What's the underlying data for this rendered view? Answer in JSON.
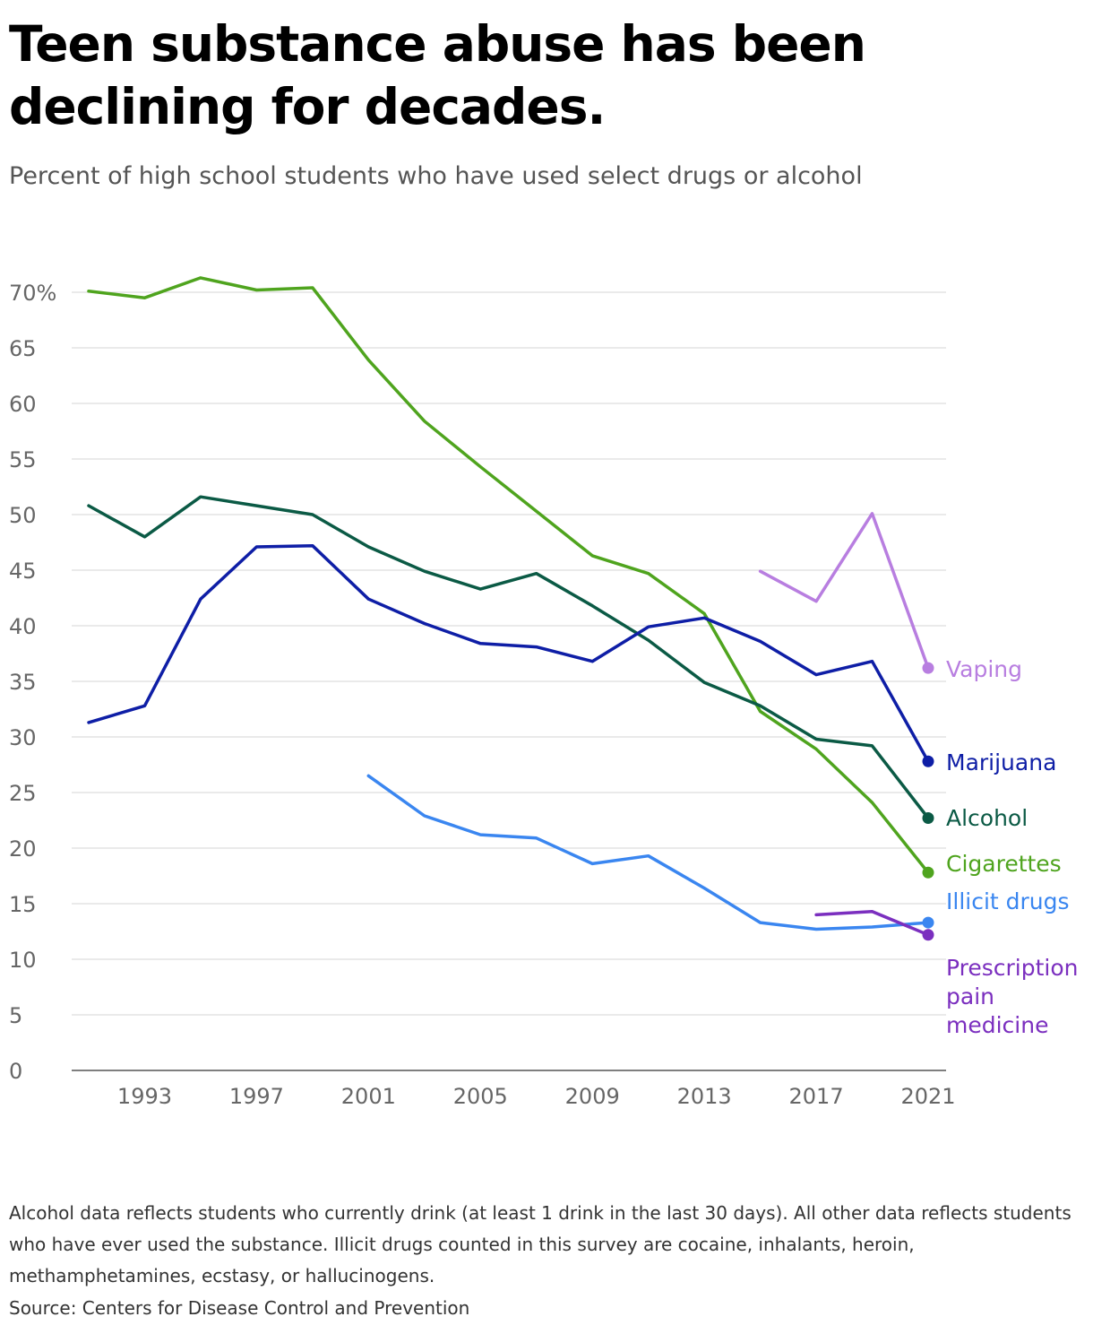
{
  "title": "Teen substance abuse has been declining for decades.",
  "subtitle": "Percent of high school students who have used select drugs or alcohol",
  "footnote": "Alcohol data reflects students who currently drink (at least 1 drink in the last 30 days). All other data reflects students who have ever used the substance. Illicit drugs counted in this survey are cocaine, inhalants, heroin, methamphetamines, ecstasy, or hallucinogens.",
  "source": "Source: Centers for Disease Control and Prevention",
  "chart_data": {
    "type": "line",
    "title": "Teen substance abuse has been declining for decades.",
    "subtitle": "Percent of high school students who have used select drugs or alcohol",
    "xlabel": "",
    "ylabel": "",
    "xlim": [
      1990.5,
      2021.7
    ],
    "ylim": [
      0,
      70
    ],
    "grid": true,
    "legend": "direct labels at right end of lines",
    "x_ticks": [
      1993,
      1997,
      2001,
      2005,
      2009,
      2013,
      2017,
      2021
    ],
    "x_tick_labels": [
      "1993",
      "1997",
      "2001",
      "2005",
      "2009",
      "2013",
      "2017",
      "2021"
    ],
    "y_ticks": [
      0,
      5,
      10,
      15,
      20,
      25,
      30,
      35,
      40,
      45,
      50,
      55,
      60,
      65,
      70
    ],
    "y_tick_labels": [
      "0",
      "5",
      "10",
      "15",
      "20",
      "25",
      "30",
      "35",
      "40",
      "45",
      "50",
      "55",
      "60",
      "65",
      "70%"
    ],
    "series": [
      {
        "name": "Cigarettes",
        "color": "#4fa41e",
        "x": [
          1991,
          1993,
          1995,
          1997,
          1999,
          2001,
          2003,
          2005,
          2007,
          2009,
          2011,
          2013,
          2015,
          2017,
          2019,
          2021
        ],
        "values": [
          70.1,
          69.5,
          71.3,
          70.2,
          70.4,
          63.9,
          58.4,
          54.3,
          50.3,
          46.3,
          44.7,
          41.1,
          32.3,
          28.9,
          24.1,
          17.8
        ]
      },
      {
        "name": "Alcohol",
        "color": "#0b5a45",
        "x": [
          1991,
          1993,
          1995,
          1997,
          1999,
          2001,
          2003,
          2005,
          2007,
          2009,
          2011,
          2013,
          2015,
          2017,
          2019,
          2021
        ],
        "values": [
          50.8,
          48.0,
          51.6,
          50.8,
          50.0,
          47.1,
          44.9,
          43.3,
          44.7,
          41.8,
          38.7,
          34.9,
          32.8,
          29.8,
          29.2,
          22.7
        ]
      },
      {
        "name": "Marijuana",
        "color": "#0e1ea6",
        "x": [
          1991,
          1993,
          1995,
          1997,
          1999,
          2001,
          2003,
          2005,
          2007,
          2009,
          2011,
          2013,
          2015,
          2017,
          2019,
          2021
        ],
        "values": [
          31.3,
          32.8,
          42.4,
          47.1,
          47.2,
          42.4,
          40.2,
          38.4,
          38.1,
          36.8,
          39.9,
          40.7,
          38.6,
          35.6,
          36.8,
          27.8
        ]
      },
      {
        "name": "Vaping",
        "color": "#b87ee0",
        "x": [
          2015,
          2017,
          2019,
          2021
        ],
        "values": [
          44.9,
          42.2,
          50.1,
          36.2
        ]
      },
      {
        "name": "Illicit drugs",
        "color": "#3a86f0",
        "x": [
          2001,
          2003,
          2005,
          2007,
          2009,
          2011,
          2013,
          2015,
          2017,
          2019,
          2021
        ],
        "values": [
          26.5,
          22.9,
          21.2,
          20.9,
          18.6,
          19.3,
          16.4,
          13.3,
          12.7,
          12.9,
          13.3
        ]
      },
      {
        "name": "Prescription pain medicine",
        "label_lines": [
          "Prescription",
          "pain",
          "medicine"
        ],
        "color": "#7b2fbf",
        "x": [
          2017,
          2019,
          2021
        ],
        "values": [
          14.0,
          14.3,
          12.2
        ]
      }
    ]
  }
}
